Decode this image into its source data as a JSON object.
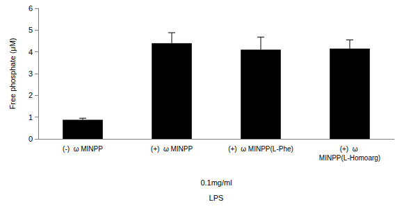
{
  "chart_data": {
    "type": "bar",
    "y_label": "Free phosphate (μM)",
    "x_label": [
      "0.1mg/ml",
      "LPS"
    ],
    "categories": [
      "(-)  ω MINPP",
      "(+)  ω MINPP",
      "(+)  ω MINPP(L-Phe)",
      "(+)  ω MINPP(L-Homoarg)"
    ],
    "values": [
      0.88,
      4.4,
      4.1,
      4.15
    ],
    "error": [
      0.07,
      0.48,
      0.58,
      0.4
    ],
    "color": "#000000",
    "ylim": [
      0,
      6
    ],
    "yticks": [
      0,
      1,
      2,
      3,
      4,
      5,
      6
    ],
    "grid": false
  }
}
